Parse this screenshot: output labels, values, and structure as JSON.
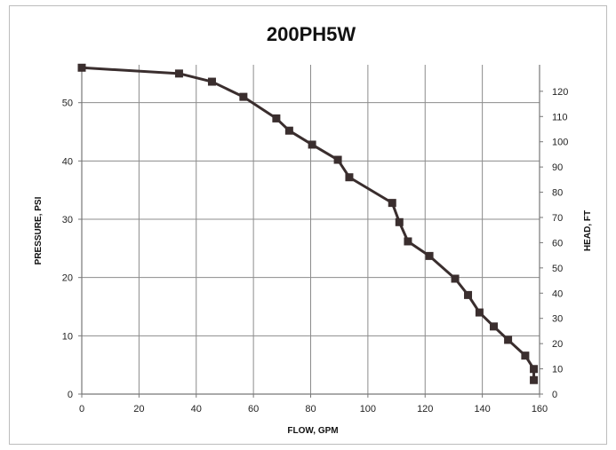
{
  "chart_data": {
    "type": "line",
    "title": "200PH5W",
    "xlabel": "FLOW, GPM",
    "ylabel": "PRESSURE, PSI",
    "y2label": "HEAD, FT",
    "xlim": [
      0,
      160
    ],
    "ylim": [
      0,
      56.5
    ],
    "y2lim": [
      0,
      130.5
    ],
    "xticks": [
      0,
      20,
      40,
      60,
      80,
      100,
      120,
      140,
      160
    ],
    "yticks": [
      0,
      10,
      20,
      30,
      40,
      50
    ],
    "y2ticks": [
      0,
      10,
      20,
      30,
      40,
      50,
      60,
      70,
      80,
      90,
      100,
      110,
      120
    ],
    "grid": true,
    "legend": "none",
    "line_color": "#3a2e2e",
    "marker": "square",
    "series": [
      {
        "x": [
          0,
          34,
          45.5,
          56.5,
          68,
          72.5,
          80.5,
          89.5,
          93.5,
          108.5,
          111,
          114,
          121.5,
          130.5,
          135,
          139,
          144,
          149,
          155,
          158,
          158
        ],
        "y": [
          56,
          55,
          53.6,
          51,
          47.3,
          45.2,
          42.8,
          40.2,
          37.2,
          32.8,
          29.5,
          26.2,
          23.7,
          19.8,
          17,
          14,
          11.6,
          9.3,
          6.6,
          4.3,
          2.4
        ]
      }
    ]
  }
}
